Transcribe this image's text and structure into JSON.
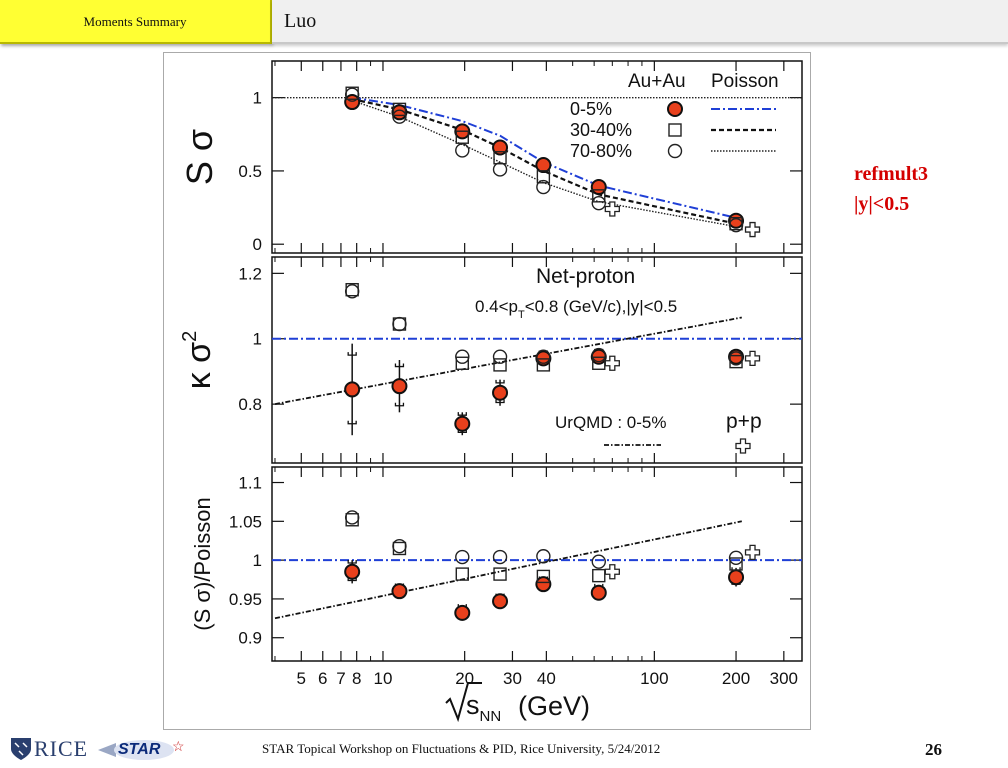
{
  "header": {
    "section_tab": "Moments Summary",
    "author": "Luo"
  },
  "side_note": {
    "line1": "refmult3",
    "line2": "|y|<0.5"
  },
  "footer": {
    "text": "STAR Topical Workshop on Fluctuations & PID, Rice University, 5/24/2012",
    "page_number": "26",
    "rice_logo": "RICE",
    "star_logo": "STAR"
  },
  "colors": {
    "filled_marker": "#e8401c",
    "poisson_line": "#1f3fd6",
    "tab_yellow": "#ffff33",
    "side_note": "#d40000"
  },
  "chart_data": {
    "type": "scatter",
    "x_label_text": "(GeV)",
    "x_scale": "log",
    "x_range": [
      3.9,
      350
    ],
    "x_ticks": [
      5,
      6,
      7,
      8,
      10,
      20,
      30,
      40,
      100,
      200,
      300
    ],
    "panels": [
      {
        "id": "s_sigma",
        "ylabel": "S σ",
        "ylim": [
          -0.06,
          1.25
        ],
        "yticks": [
          0,
          0.5,
          1
        ],
        "ytick_labels": [
          "0",
          "0.5",
          "1"
        ],
        "legend": {
          "header_left": "Au+Au",
          "header_right": "Poisson",
          "entries": [
            {
              "label": "0-5%",
              "marker": "filled-circle",
              "line": "dashdot-blue"
            },
            {
              "label": "30-40%",
              "marker": "open-square",
              "line": "dash-black"
            },
            {
              "label": "70-80%",
              "marker": "open-circle",
              "line": "dot-black"
            }
          ]
        },
        "series": [
          {
            "name": "0-5%",
            "marker": "filled-circle",
            "x": [
              7.7,
              11.5,
              19.6,
              27,
              39,
              62.4,
              200
            ],
            "y": [
              0.97,
              0.9,
              0.77,
              0.66,
              0.54,
              0.39,
              0.16
            ]
          },
          {
            "name": "30-40%",
            "marker": "open-square",
            "x": [
              7.7,
              11.5,
              19.6,
              27,
              39,
              62.4,
              200
            ],
            "y": [
              1.03,
              0.92,
              0.73,
              0.59,
              0.46,
              0.33,
              0.14
            ]
          },
          {
            "name": "70-80%",
            "marker": "open-circle",
            "x": [
              7.7,
              11.5,
              19.6,
              27,
              39,
              62.4,
              200
            ],
            "y": [
              1.02,
              0.87,
              0.64,
              0.51,
              0.39,
              0.28,
              0.13
            ]
          },
          {
            "name": "p+p",
            "marker": "open-cross",
            "x": [
              70,
              230
            ],
            "y": [
              0.24,
              0.1
            ]
          }
        ],
        "curves": [
          {
            "name": "0-5% Poisson",
            "style": "dashdot-blue",
            "x": [
              7.7,
              11.5,
              19.6,
              27,
              39,
              62.4,
              200
            ],
            "y": [
              1.0,
              0.95,
              0.84,
              0.74,
              0.56,
              0.4,
              0.18
            ]
          },
          {
            "name": "30-40% Poisson",
            "style": "dash-black",
            "x": [
              7.7,
              11.5,
              19.6,
              27,
              39,
              62.4,
              200
            ],
            "y": [
              0.99,
              0.92,
              0.78,
              0.66,
              0.5,
              0.34,
              0.14
            ]
          },
          {
            "name": "70-80% Poisson",
            "style": "dot-black",
            "x": [
              7.7,
              11.5,
              19.6,
              27,
              39,
              62.4,
              200
            ],
            "y": [
              0.98,
              0.87,
              0.68,
              0.56,
              0.42,
              0.29,
              0.12
            ]
          }
        ],
        "reference_lines": [
          {
            "y": 1,
            "style": "dot-black"
          }
        ]
      },
      {
        "id": "kappa_sigma2",
        "ylabel": "κ σ",
        "ylabel_sup": "2",
        "ylim": [
          0.62,
          1.25
        ],
        "yticks": [
          0.8,
          1,
          1.2
        ],
        "ytick_labels": [
          "0.8",
          "1",
          "1.2"
        ],
        "annotations": [
          {
            "text": "Net-proton",
            "size": "large"
          },
          {
            "text_parts": [
              "0.4<p",
              "T",
              "<0.8 (GeV/c),|y|<0.5"
            ]
          },
          {
            "text": "UrQMD : 0-5%",
            "line": "dashdot-black"
          },
          {
            "text": "p+p",
            "marker": "open-cross"
          }
        ],
        "series": [
          {
            "name": "0-5%",
            "marker": "filled-circle",
            "x": [
              7.7,
              11.5,
              19.6,
              27,
              39,
              62.4,
              200
            ],
            "y": [
              0.845,
              0.855,
              0.74,
              0.835,
              0.94,
              0.945,
              0.945
            ],
            "err": [
              0.14,
              0.08,
              0.035,
              0.04,
              0.02,
              0.02,
              0.015
            ]
          },
          {
            "name": "30-40%",
            "marker": "open-square",
            "x": [
              7.7,
              11.5,
              19.6,
              27,
              39,
              62.4,
              200
            ],
            "y": [
              1.15,
              1.045,
              0.925,
              0.92,
              0.92,
              0.925,
              0.93
            ]
          },
          {
            "name": "70-80%",
            "marker": "open-circle",
            "x": [
              7.7,
              11.5,
              19.6,
              27,
              39,
              62.4,
              200
            ],
            "y": [
              1.145,
              1.045,
              0.945,
              0.945,
              0.945,
              0.95,
              0.94
            ]
          },
          {
            "name": "p+p",
            "marker": "open-cross",
            "x": [
              70,
              230
            ],
            "y": [
              0.925,
              0.94
            ]
          }
        ],
        "curves": [
          {
            "name": "UrQMD : 0-5%",
            "style": "dashdot-black",
            "x": [
              4,
              210
            ],
            "y": [
              0.8,
              1.065
            ]
          }
        ],
        "reference_lines": [
          {
            "y": 1,
            "style": "dashdot-blue"
          }
        ]
      },
      {
        "id": "ratio",
        "ylabel": "(S σ)/Poisson",
        "ylim": [
          0.87,
          1.12
        ],
        "yticks": [
          0.9,
          0.95,
          1,
          1.05,
          1.1
        ],
        "ytick_labels": [
          "0.9",
          "0.95",
          "1",
          "1.05",
          "1.1"
        ],
        "series": [
          {
            "name": "0-5%",
            "marker": "filled-circle",
            "x": [
              7.7,
              11.5,
              19.6,
              27,
              39,
              62.4,
              200
            ],
            "y": [
              0.985,
              0.96,
              0.932,
              0.947,
              0.969,
              0.958,
              0.978
            ],
            "err": [
              0.015,
              0.008,
              0.01,
              0.008,
              0.008,
              0.01,
              0.012
            ]
          },
          {
            "name": "30-40%",
            "marker": "open-square",
            "x": [
              7.7,
              11.5,
              19.6,
              27,
              39,
              62.4,
              200
            ],
            "y": [
              1.052,
              1.015,
              0.982,
              0.982,
              0.979,
              0.98,
              0.995
            ]
          },
          {
            "name": "70-80%",
            "marker": "open-circle",
            "x": [
              7.7,
              11.5,
              19.6,
              27,
              39,
              62.4,
              200
            ],
            "y": [
              1.055,
              1.018,
              1.004,
              1.004,
              1.005,
              0.998,
              1.003
            ]
          },
          {
            "name": "p+p",
            "marker": "open-cross",
            "x": [
              70,
              230
            ],
            "y": [
              0.985,
              1.01
            ]
          }
        ],
        "curves": [
          {
            "name": "UrQMD : 0-5%",
            "style": "dashdot-black",
            "x": [
              4,
              210
            ],
            "y": [
              0.925,
              1.05
            ]
          }
        ],
        "reference_lines": [
          {
            "y": 1,
            "style": "dashdot-blue"
          }
        ]
      }
    ]
  }
}
